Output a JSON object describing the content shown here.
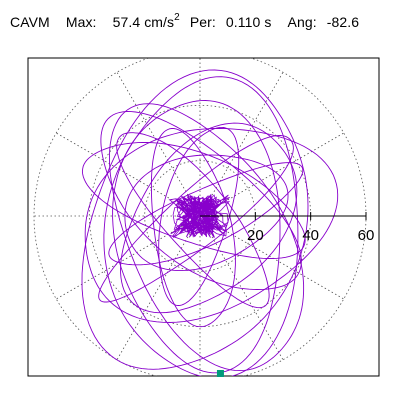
{
  "header": {
    "title": "CAVM",
    "max_label": "Max:",
    "max_value": "57.4 cm/s",
    "max_exp": "2",
    "per_label": "Per:",
    "per_value": "0.110 s",
    "ang_label": "Ang:",
    "ang_value": "-82.6"
  },
  "chart_data": {
    "type": "polar-orbit",
    "title": "",
    "radial_ticks": [
      20,
      40,
      60
    ],
    "radial_max": 60,
    "grid": true,
    "grid_spokes_deg": [
      0,
      30,
      60,
      90,
      120,
      150,
      180,
      210,
      240,
      270,
      300,
      330
    ],
    "max_amplitude": 57.4,
    "max_angle_deg": -82.6,
    "colors": {
      "trace": "#8800cc",
      "marker": "#00997a",
      "grid": "#555555",
      "axis": "#000000"
    },
    "orbits": [
      {
        "a": 55.5,
        "b": 38,
        "rot": 70,
        "cx": -2,
        "cy": -3
      },
      {
        "a": 52,
        "b": 28,
        "rot": 118,
        "cx": 2,
        "cy": -8
      },
      {
        "a": 47,
        "b": 33,
        "rot": 20,
        "cx": 2,
        "cy": -2
      },
      {
        "a": 44,
        "b": 20,
        "rot": 140,
        "cx": -1,
        "cy": 4
      },
      {
        "a": 49,
        "b": 30,
        "rot": 95,
        "cx": 0,
        "cy": -6
      },
      {
        "a": 39,
        "b": 25,
        "rot": 50,
        "cx": 3,
        "cy": -1
      },
      {
        "a": 42,
        "b": 16,
        "rot": 160,
        "cx": -2,
        "cy": 6
      },
      {
        "a": 36,
        "b": 14,
        "rot": 100,
        "cx": -3,
        "cy": -5
      },
      {
        "a": 30,
        "b": 20,
        "rot": 15,
        "cx": 1,
        "cy": 2
      },
      {
        "a": 54,
        "b": 35,
        "rot": 88,
        "cx": 2,
        "cy": -5
      },
      {
        "a": 33,
        "b": 12,
        "rot": 75,
        "cx": -1,
        "cy": 1
      },
      {
        "a": 45,
        "b": 10,
        "rot": 40,
        "cx": 0,
        "cy": 0
      },
      {
        "a": 40,
        "b": 12,
        "rot": 130,
        "cx": -2,
        "cy": 0
      },
      {
        "a": 38,
        "b": 10,
        "rot": 25,
        "cx": 2,
        "cy": 0
      }
    ],
    "core_scribble": {
      "radius": 10,
      "loops": 60
    }
  }
}
